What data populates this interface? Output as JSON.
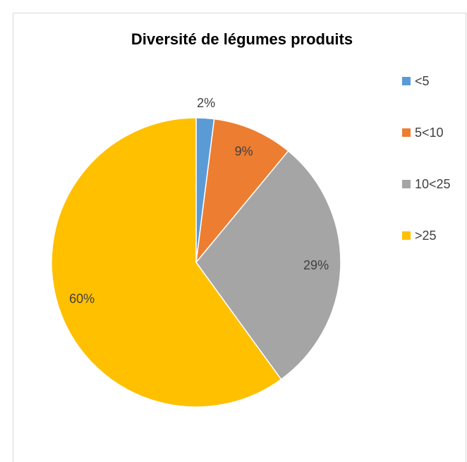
{
  "chart_data": {
    "type": "pie",
    "title": "Diversité de légumes produits",
    "categories": [
      "<5",
      "5<10",
      "10<25",
      ">25"
    ],
    "values": [
      2,
      9,
      29,
      60
    ],
    "value_labels": [
      "2%",
      "9%",
      "29%",
      "60%"
    ],
    "colors": [
      "#5b9bd5",
      "#ed7d31",
      "#a5a5a5",
      "#ffc000"
    ],
    "legend": "right"
  }
}
